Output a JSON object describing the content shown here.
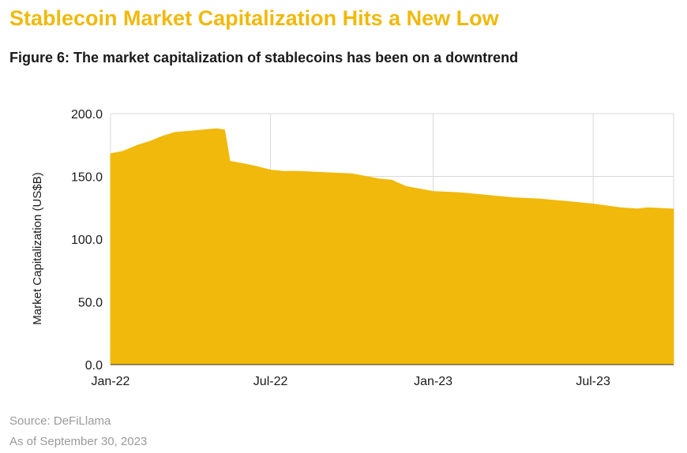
{
  "page": {
    "headline": "Stablecoin Market Capitalization Hits a New Low",
    "figure_title": "Figure 6: The market capitalization of stablecoins has been on a downtrend",
    "source": "Source: DeFiLlama",
    "as_of": "As of September 30, 2023"
  },
  "colors": {
    "accent": "#F0B90B",
    "area": "#F0B90B",
    "grid": "#d9d9d9"
  },
  "chart_data": {
    "type": "area",
    "title": "",
    "xlabel": "",
    "ylabel": "Market Capitalization (US$B)",
    "ylim": [
      0,
      200
    ],
    "yticks": [
      "0.0",
      "50.0",
      "100.0",
      "150.0",
      "200.0"
    ],
    "xticks": [
      "Jan-22",
      "Jul-22",
      "Jan-23",
      "Jul-23"
    ],
    "xlim": [
      "2022-01-01",
      "2023-09-30"
    ],
    "grid": true,
    "series": [
      {
        "color": "#F0B90B",
        "points": [
          [
            "2022-01-01",
            168
          ],
          [
            "2022-01-15",
            170
          ],
          [
            "2022-02-01",
            175
          ],
          [
            "2022-02-15",
            178
          ],
          [
            "2022-03-01",
            182
          ],
          [
            "2022-03-15",
            185
          ],
          [
            "2022-04-01",
            186
          ],
          [
            "2022-04-15",
            187
          ],
          [
            "2022-05-01",
            188
          ],
          [
            "2022-05-10",
            187
          ],
          [
            "2022-05-13",
            175
          ],
          [
            "2022-05-16",
            162
          ],
          [
            "2022-06-01",
            160
          ],
          [
            "2022-06-15",
            158
          ],
          [
            "2022-07-01",
            155
          ],
          [
            "2022-07-15",
            154
          ],
          [
            "2022-08-01",
            154
          ],
          [
            "2022-09-01",
            153
          ],
          [
            "2022-10-01",
            152
          ],
          [
            "2022-11-01",
            148
          ],
          [
            "2022-11-15",
            147
          ],
          [
            "2022-12-01",
            142
          ],
          [
            "2023-01-01",
            138
          ],
          [
            "2023-02-01",
            137
          ],
          [
            "2023-03-01",
            135
          ],
          [
            "2023-04-01",
            133
          ],
          [
            "2023-05-01",
            132
          ],
          [
            "2023-06-01",
            130
          ],
          [
            "2023-07-01",
            128
          ],
          [
            "2023-08-01",
            125
          ],
          [
            "2023-08-20",
            124
          ],
          [
            "2023-09-01",
            125
          ],
          [
            "2023-09-30",
            124
          ]
        ]
      }
    ]
  }
}
